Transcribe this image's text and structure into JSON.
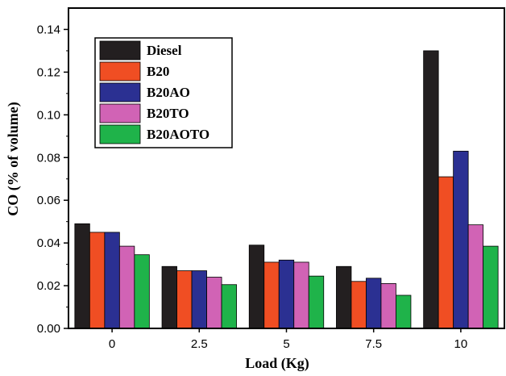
{
  "chart_data": {
    "type": "bar",
    "categories": [
      "0",
      "2.5",
      "5",
      "7.5",
      "10"
    ],
    "series": [
      {
        "name": "Diesel",
        "color": "#231f20",
        "values": [
          0.049,
          0.029,
          0.039,
          0.029,
          0.13
        ]
      },
      {
        "name": "B20",
        "color": "#f04e23",
        "values": [
          0.045,
          0.027,
          0.031,
          0.022,
          0.071
        ]
      },
      {
        "name": "B20AO",
        "color": "#2b3092",
        "values": [
          0.045,
          0.027,
          0.032,
          0.0235,
          0.083
        ]
      },
      {
        "name": "B20TO",
        "color": "#d163b5",
        "values": [
          0.0385,
          0.024,
          0.031,
          0.021,
          0.0485
        ]
      },
      {
        "name": "B20AOTO",
        "color": "#1fb34a",
        "values": [
          0.0345,
          0.0205,
          0.0245,
          0.0155,
          0.0385
        ]
      }
    ],
    "xlabel": "Load (Kg)",
    "ylabel": "CO (% of volume)",
    "ylim": [
      0,
      0.15
    ],
    "yticks": [
      "0.00",
      "0.02",
      "0.04",
      "0.06",
      "0.08",
      "0.10",
      "0.12",
      "0.14"
    ],
    "legend_position": "top-left",
    "grid": false
  }
}
